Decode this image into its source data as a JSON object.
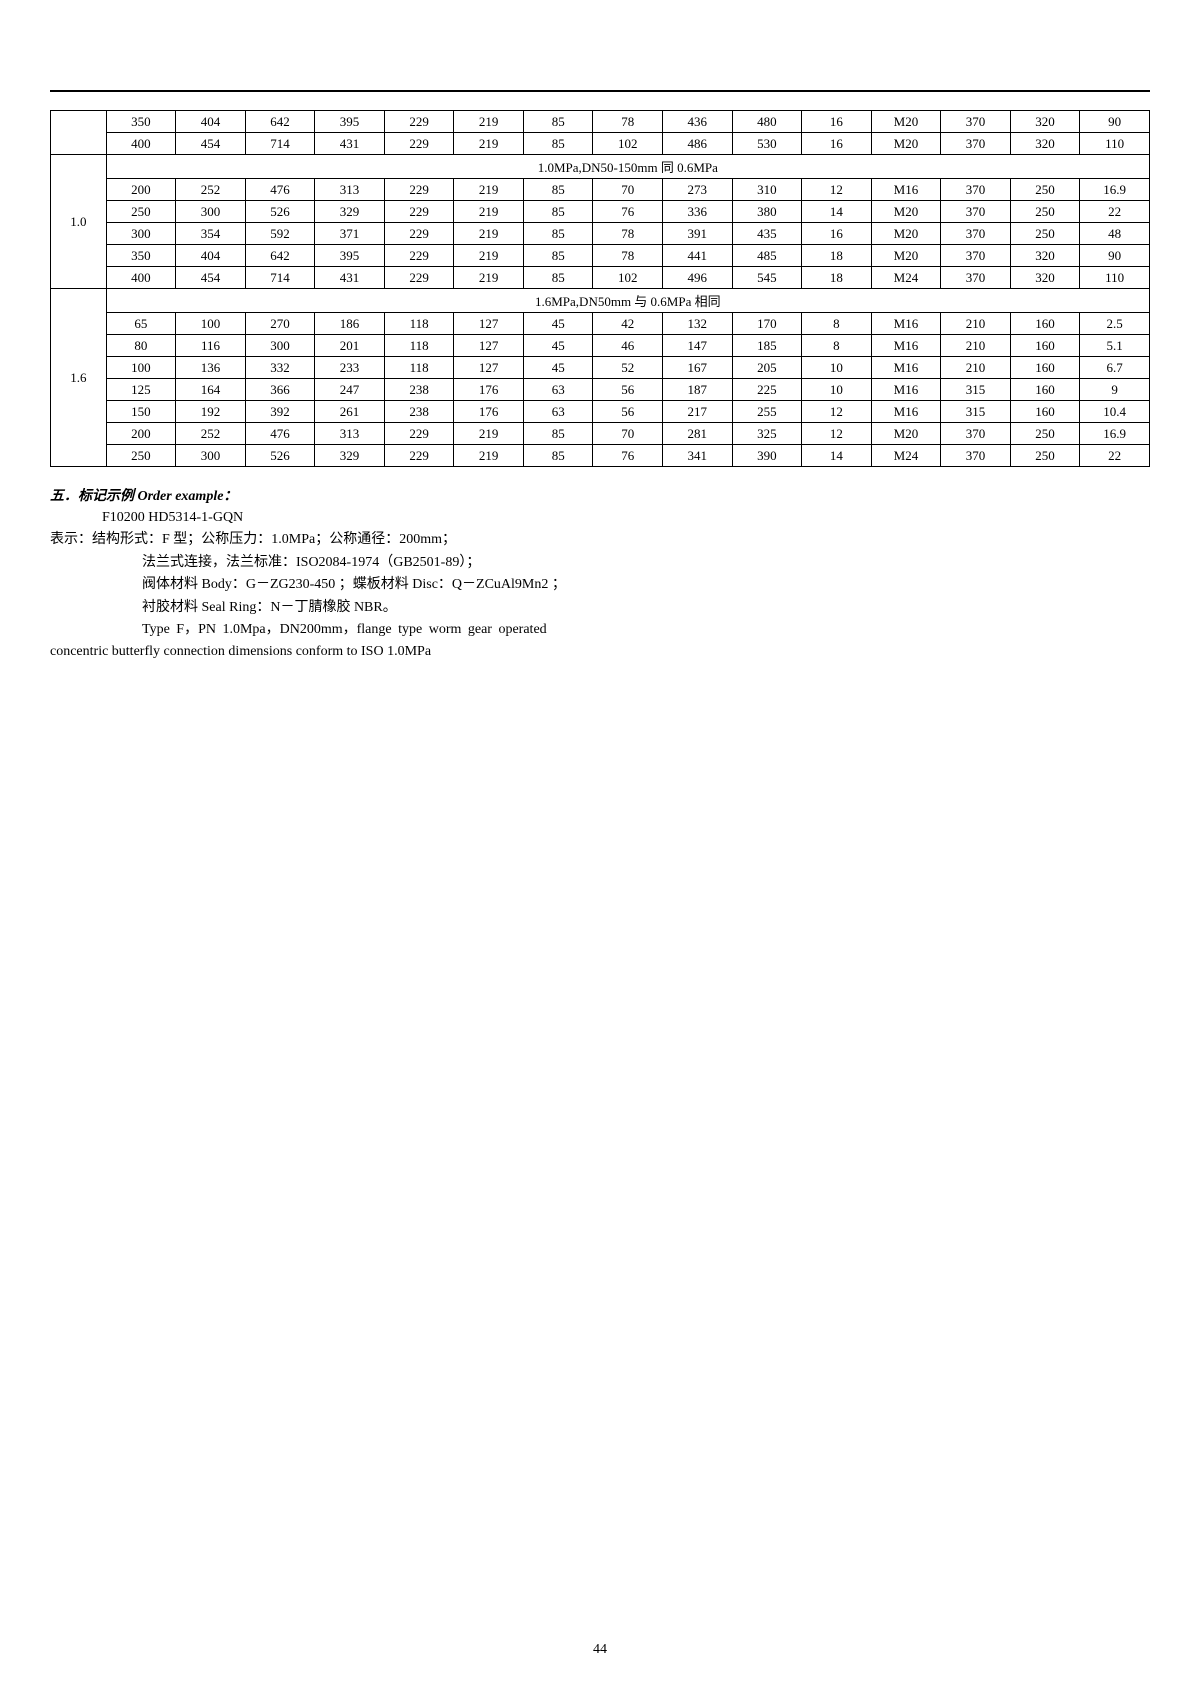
{
  "table": {
    "group_top_rows": [
      [
        "350",
        "404",
        "642",
        "395",
        "229",
        "219",
        "85",
        "78",
        "436",
        "480",
        "16",
        "M20",
        "370",
        "320",
        "90"
      ],
      [
        "400",
        "454",
        "714",
        "431",
        "229",
        "219",
        "85",
        "102",
        "486",
        "530",
        "16",
        "M20",
        "370",
        "320",
        "110"
      ]
    ],
    "group_10": {
      "label": "1.0",
      "spanner": "1.0MPa,DN50-150mm 同 0.6MPa",
      "rows": [
        [
          "200",
          "252",
          "476",
          "313",
          "229",
          "219",
          "85",
          "70",
          "273",
          "310",
          "12",
          "M16",
          "370",
          "250",
          "16.9"
        ],
        [
          "250",
          "300",
          "526",
          "329",
          "229",
          "219",
          "85",
          "76",
          "336",
          "380",
          "14",
          "M20",
          "370",
          "250",
          "22"
        ],
        [
          "300",
          "354",
          "592",
          "371",
          "229",
          "219",
          "85",
          "78",
          "391",
          "435",
          "16",
          "M20",
          "370",
          "250",
          "48"
        ],
        [
          "350",
          "404",
          "642",
          "395",
          "229",
          "219",
          "85",
          "78",
          "441",
          "485",
          "18",
          "M20",
          "370",
          "320",
          "90"
        ],
        [
          "400",
          "454",
          "714",
          "431",
          "229",
          "219",
          "85",
          "102",
          "496",
          "545",
          "18",
          "M24",
          "370",
          "320",
          "110"
        ]
      ]
    },
    "group_16": {
      "label": "1.6",
      "spanner": "1.6MPa,DN50mm 与 0.6MPa 相同",
      "rows": [
        [
          "65",
          "100",
          "270",
          "186",
          "118",
          "127",
          "45",
          "42",
          "132",
          "170",
          "8",
          "M16",
          "210",
          "160",
          "2.5"
        ],
        [
          "80",
          "116",
          "300",
          "201",
          "118",
          "127",
          "45",
          "46",
          "147",
          "185",
          "8",
          "M16",
          "210",
          "160",
          "5.1"
        ],
        [
          "100",
          "136",
          "332",
          "233",
          "118",
          "127",
          "45",
          "52",
          "167",
          "205",
          "10",
          "M16",
          "210",
          "160",
          "6.7"
        ],
        [
          "125",
          "164",
          "366",
          "247",
          "238",
          "176",
          "63",
          "56",
          "187",
          "225",
          "10",
          "M16",
          "315",
          "160",
          "9"
        ],
        [
          "150",
          "192",
          "392",
          "261",
          "238",
          "176",
          "63",
          "56",
          "217",
          "255",
          "12",
          "M16",
          "315",
          "160",
          "10.4"
        ],
        [
          "200",
          "252",
          "476",
          "313",
          "229",
          "219",
          "85",
          "70",
          "281",
          "325",
          "12",
          "M20",
          "370",
          "250",
          "16.9"
        ],
        [
          "250",
          "300",
          "526",
          "329",
          "229",
          "219",
          "85",
          "76",
          "341",
          "390",
          "14",
          "M24",
          "370",
          "250",
          "22"
        ]
      ]
    }
  },
  "section_title": "五．标记示例 Order example：",
  "example": {
    "l1": "F10200   HD5314-1-GQN",
    "l2": "表示：结构形式：F 型；公称压力：1.0MPa；公称通径：200mm；",
    "l3": "法兰式连接，法兰标准：ISO2084-1974（GB2501-89）；",
    "l4": "阀体材料 Body：G－ZG230-450 ；蝶板材料 Disc：Q－ZCuAl9Mn2 ；",
    "l5": "衬胶材料 Seal Ring：N－丁腈橡胶 NBR。",
    "l6": "Type F，PN 1.0Mpa，DN200mm，flange type worm gear operated",
    "l7": "concentric butterfly connection dimensions conform to ISO 1.0MPa"
  },
  "page_number": "44"
}
